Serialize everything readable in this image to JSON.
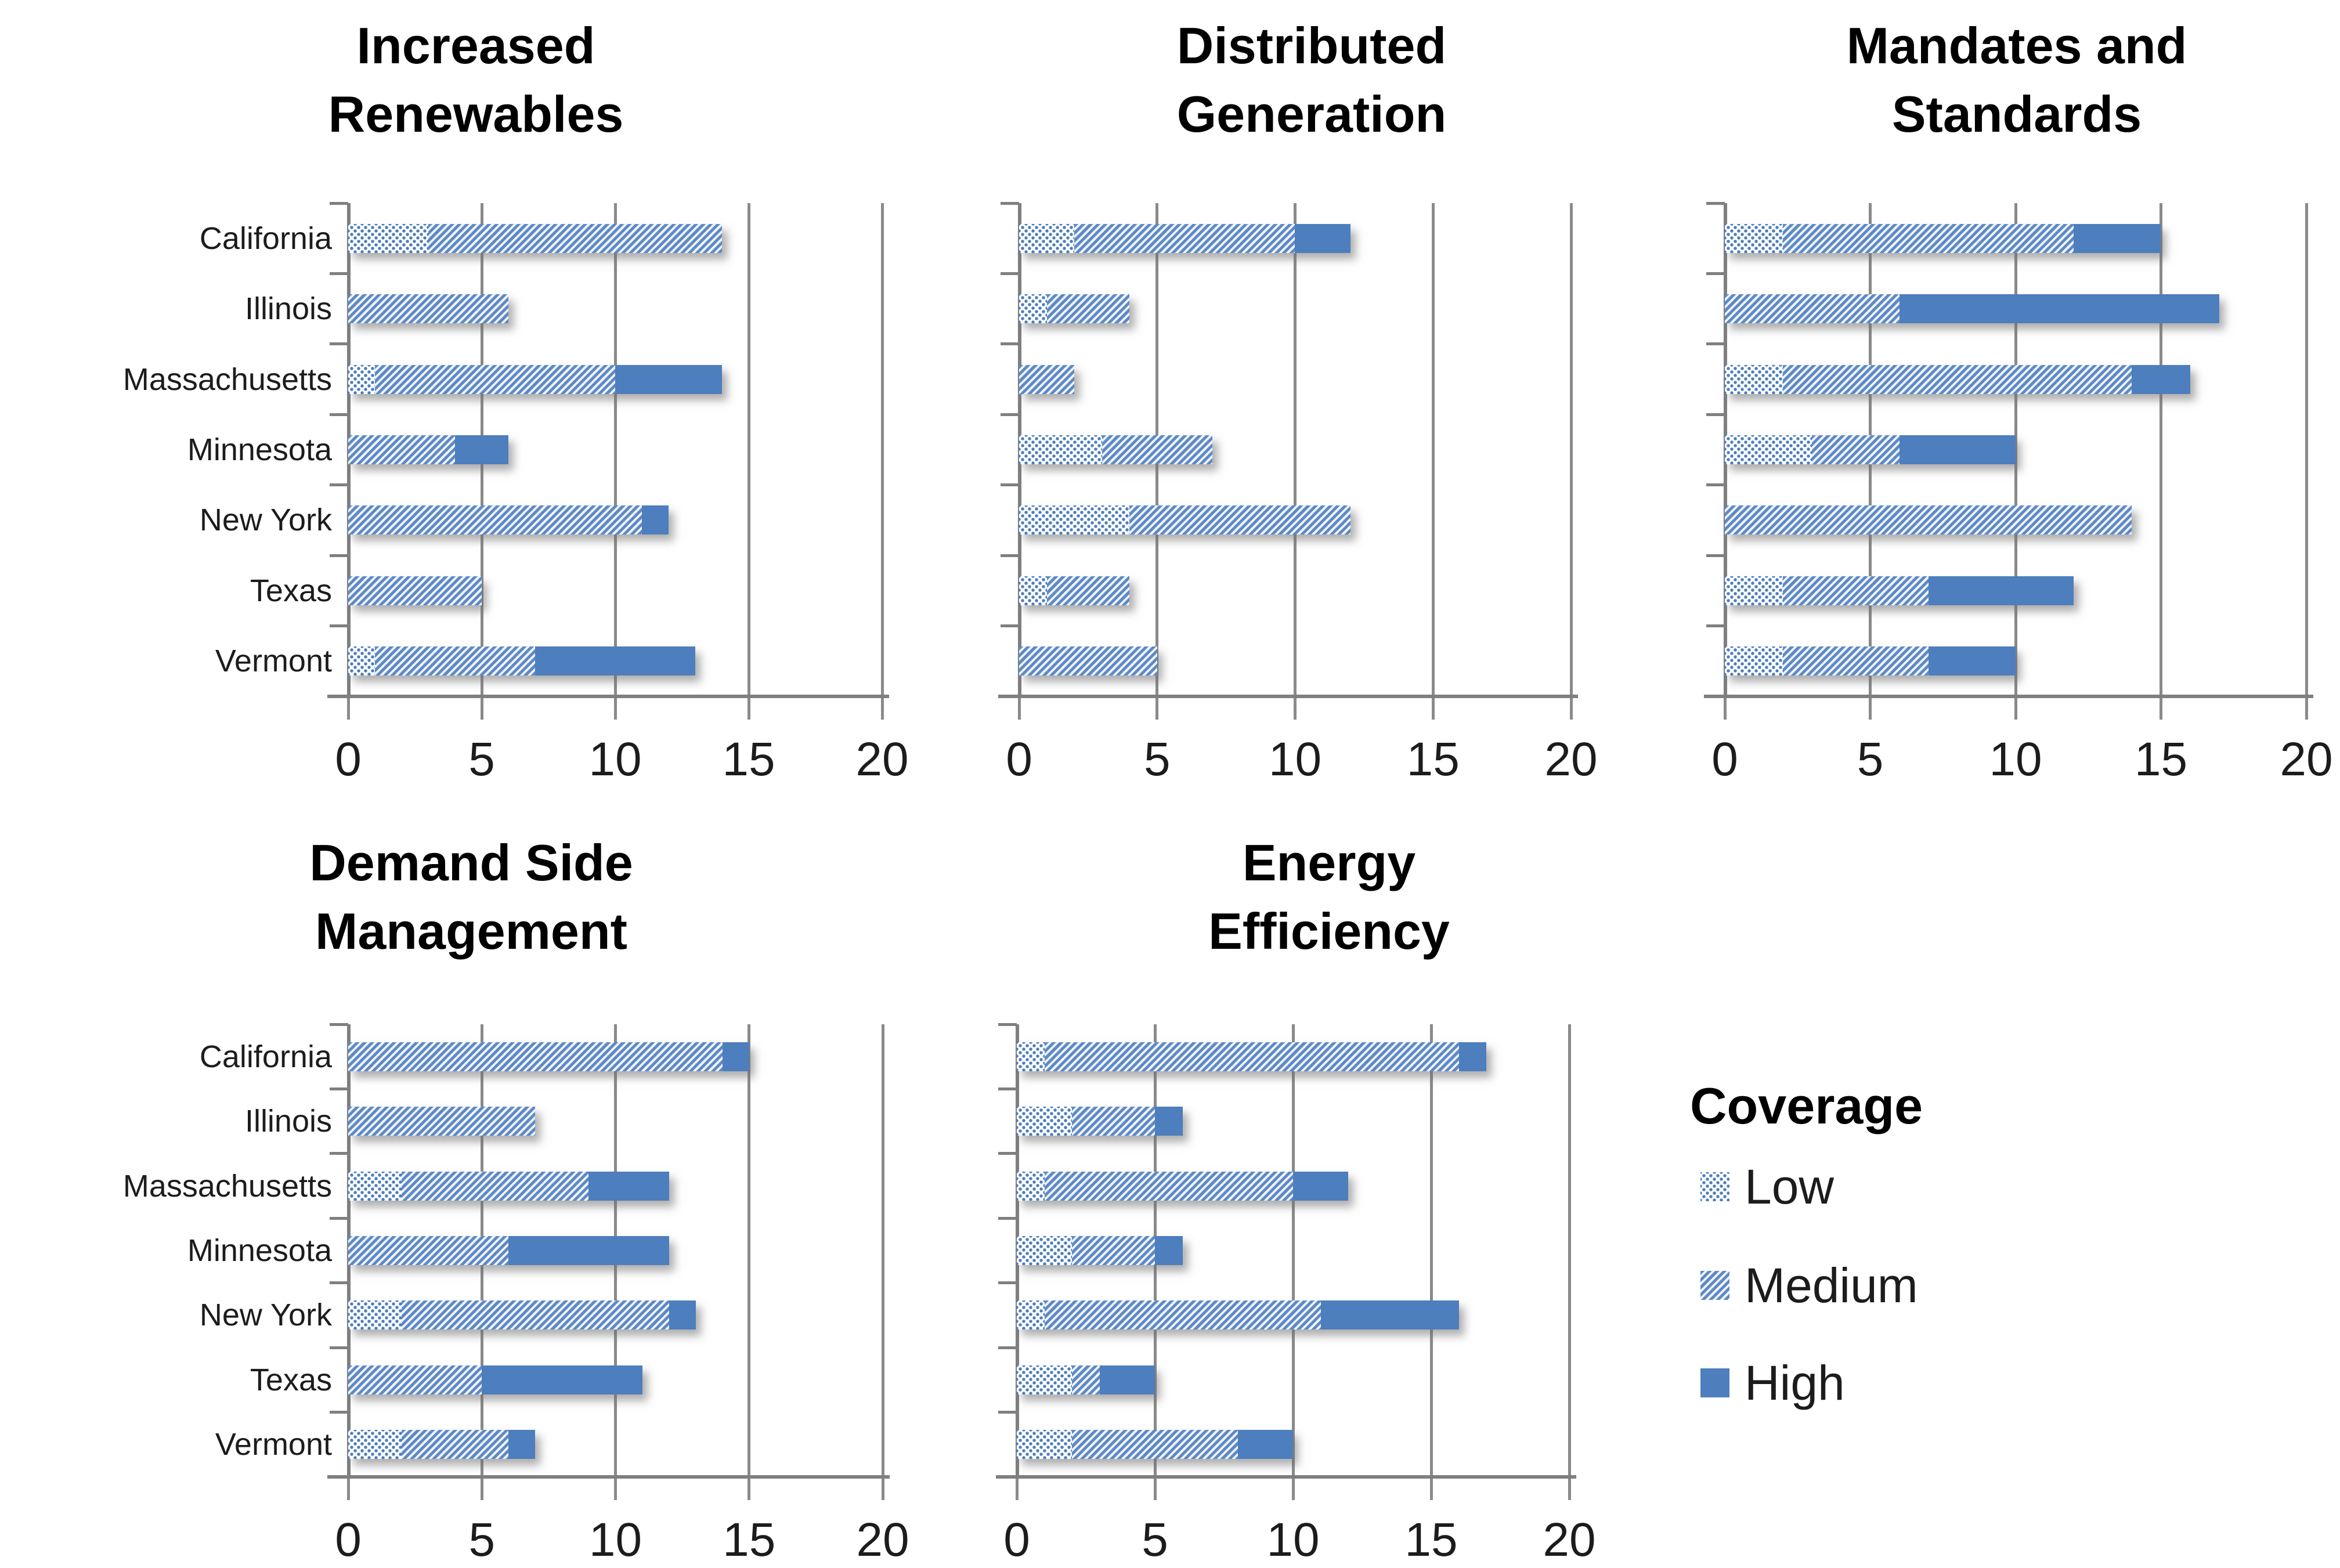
{
  "page": {
    "background": "#ffffff"
  },
  "colors": {
    "high_solid_blue": "#4d7ebd",
    "medium_stripe_blue": "#5e89c6",
    "low_dot_blue": "#4d7ebd",
    "stripe_gap": "#eef3fa",
    "gridline_gray": "#8a8a8a",
    "axis_gray": "#7f7f7f",
    "text": "#1c1c1c"
  },
  "legend": {
    "title": "Coverage",
    "items": [
      {
        "label": "Low",
        "pattern": "low"
      },
      {
        "label": "Medium",
        "pattern": "medium"
      },
      {
        "label": "High",
        "pattern": "high"
      }
    ]
  },
  "chart_data": [
    {
      "type": "bar",
      "orientation": "horizontal",
      "stacked": true,
      "title": "Increased Renewables",
      "title_lines": [
        "Increased",
        "Renewables"
      ],
      "categories": [
        "California",
        "Illinois",
        "Massachusetts",
        "Minnesota",
        "New York",
        "Texas",
        "Vermont"
      ],
      "series": [
        {
          "name": "Low",
          "values": [
            3,
            0,
            1,
            0,
            0,
            0,
            1
          ]
        },
        {
          "name": "Medium",
          "values": [
            11,
            6,
            9,
            4,
            11,
            5,
            6
          ]
        },
        {
          "name": "High",
          "values": [
            0,
            0,
            4,
            2,
            1,
            0,
            6
          ]
        }
      ],
      "xlim": [
        0,
        20
      ],
      "xticks": [
        0,
        5,
        10,
        15,
        20
      ],
      "grid": true,
      "show_category_labels": true
    },
    {
      "type": "bar",
      "orientation": "horizontal",
      "stacked": true,
      "title": "Distributed Generation",
      "title_lines": [
        "Distributed",
        "Generation"
      ],
      "categories": [
        "California",
        "Illinois",
        "Massachusetts",
        "Minnesota",
        "New York",
        "Texas",
        "Vermont"
      ],
      "series": [
        {
          "name": "Low",
          "values": [
            2,
            1,
            0,
            3,
            4,
            1,
            0
          ]
        },
        {
          "name": "Medium",
          "values": [
            8,
            3,
            2,
            4,
            8,
            3,
            5
          ]
        },
        {
          "name": "High",
          "values": [
            2,
            0,
            0,
            0,
            0,
            0,
            0
          ]
        }
      ],
      "xlim": [
        0,
        20
      ],
      "xticks": [
        0,
        5,
        10,
        15,
        20
      ],
      "grid": true,
      "show_category_labels": false
    },
    {
      "type": "bar",
      "orientation": "horizontal",
      "stacked": true,
      "title": "Mandates and Standards",
      "title_lines": [
        "Mandates and",
        "Standards"
      ],
      "categories": [
        "California",
        "Illinois",
        "Massachusetts",
        "Minnesota",
        "New York",
        "Texas",
        "Vermont"
      ],
      "series": [
        {
          "name": "Low",
          "values": [
            2,
            0,
            2,
            3,
            0,
            2,
            2
          ]
        },
        {
          "name": "Medium",
          "values": [
            10,
            6,
            12,
            3,
            14,
            5,
            5
          ]
        },
        {
          "name": "High",
          "values": [
            3,
            11,
            2,
            4,
            0,
            5,
            3
          ]
        }
      ],
      "xlim": [
        0,
        20
      ],
      "xticks": [
        0,
        5,
        10,
        15,
        20
      ],
      "grid": true,
      "show_category_labels": false
    },
    {
      "type": "bar",
      "orientation": "horizontal",
      "stacked": true,
      "title": "Demand Side Management",
      "title_lines": [
        "Demand Side",
        "Management"
      ],
      "categories": [
        "California",
        "Illinois",
        "Massachusetts",
        "Minnesota",
        "New York",
        "Texas",
        "Vermont"
      ],
      "series": [
        {
          "name": "Low",
          "values": [
            0,
            0,
            2,
            0,
            2,
            0,
            2
          ]
        },
        {
          "name": "Medium",
          "values": [
            14,
            7,
            7,
            6,
            10,
            5,
            4
          ]
        },
        {
          "name": "High",
          "values": [
            1,
            0,
            3,
            6,
            1,
            6,
            1
          ]
        }
      ],
      "xlim": [
        0,
        20
      ],
      "xticks": [
        0,
        5,
        10,
        15,
        20
      ],
      "grid": true,
      "show_category_labels": true
    },
    {
      "type": "bar",
      "orientation": "horizontal",
      "stacked": true,
      "title": "Energy Efficiency",
      "title_lines": [
        "Energy",
        "Efficiency"
      ],
      "categories": [
        "California",
        "Illinois",
        "Massachusetts",
        "Minnesota",
        "New York",
        "Texas",
        "Vermont"
      ],
      "series": [
        {
          "name": "Low",
          "values": [
            1,
            2,
            1,
            2,
            1,
            2,
            2
          ]
        },
        {
          "name": "Medium",
          "values": [
            15,
            3,
            9,
            3,
            10,
            1,
            6
          ]
        },
        {
          "name": "High",
          "values": [
            1,
            1,
            2,
            1,
            5,
            2,
            2
          ]
        }
      ],
      "xlim": [
        0,
        20
      ],
      "xticks": [
        0,
        5,
        10,
        15,
        20
      ],
      "grid": true,
      "show_category_labels": false
    }
  ]
}
